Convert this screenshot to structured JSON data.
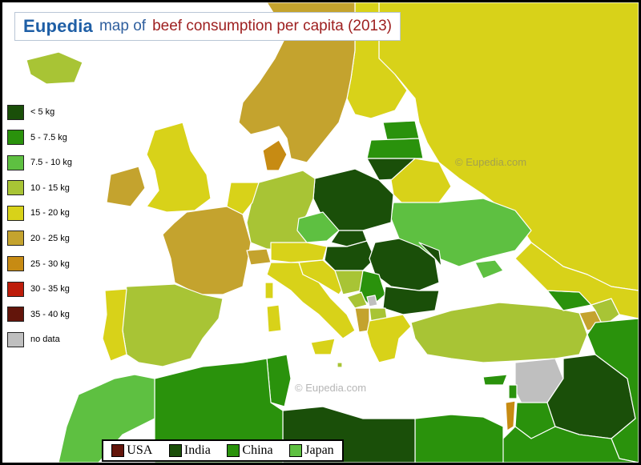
{
  "title": {
    "brand": "Eupedia",
    "prefix": "map of",
    "main": "beef consumption per capita (2013)"
  },
  "legend": {
    "items": [
      {
        "label": "< 5 kg",
        "color": "#1a4f09"
      },
      {
        "label": "5 - 7.5 kg",
        "color": "#2a920c"
      },
      {
        "label": "7.5 - 10 kg",
        "color": "#5ec041"
      },
      {
        "label": "10 - 15 kg",
        "color": "#a8c435"
      },
      {
        "label": "15 - 20 kg",
        "color": "#d8d219"
      },
      {
        "label": "20 - 25 kg",
        "color": "#c4a32e"
      },
      {
        "label": "25 - 30 kg",
        "color": "#c78b13"
      },
      {
        "label": "30 - 35 kg",
        "color": "#bd1c0a"
      },
      {
        "label": "35 - 40 kg",
        "color": "#63150b"
      },
      {
        "label": "no data",
        "color": "#bfbfbf"
      }
    ]
  },
  "comparison_legend": {
    "items": [
      {
        "label": "USA",
        "color": "#63150b"
      },
      {
        "label": "India",
        "color": "#1a4f09"
      },
      {
        "label": "China",
        "color": "#2a920c"
      },
      {
        "label": "Japan",
        "color": "#5ec041"
      }
    ]
  },
  "watermarks": [
    {
      "text": "©  Eupedia.com"
    },
    {
      "text": "©  Eupedia.com"
    }
  ],
  "colors": {
    "sea": "#ffffff",
    "border": "#ffffff",
    "frame": "#000000"
  }
}
